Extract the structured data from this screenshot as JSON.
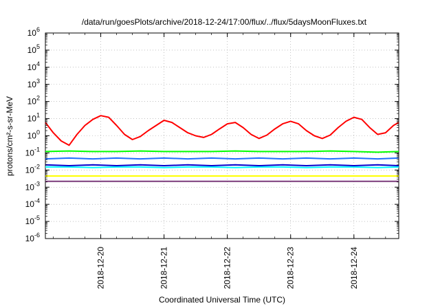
{
  "chart_data": {
    "type": "line",
    "title": "/data/run/goesPlots/archive/2018-12-24/17:00/flux/../flux/5daysMoonFluxes.txt",
    "xlabel": "Coordinated Universal Time (UTC)",
    "ylabel": "protons/cm²-s-sr-MeV",
    "yscale": "log",
    "ylim": [
      1e-06,
      1000000.0
    ],
    "xlim": [
      "2018-12-19 03:00",
      "2018-12-24 17:00"
    ],
    "grid": true,
    "legend": "none",
    "y_tick_labels": [
      {
        "base": "10",
        "exp": "-6"
      },
      {
        "base": "10",
        "exp": "-5"
      },
      {
        "base": "10",
        "exp": "-4"
      },
      {
        "base": "10",
        "exp": "-3"
      },
      {
        "base": "10",
        "exp": "-2"
      },
      {
        "base": "10",
        "exp": "-1"
      },
      {
        "base": "10",
        "exp": "0"
      },
      {
        "base": "10",
        "exp": "1"
      },
      {
        "base": "10",
        "exp": "2"
      },
      {
        "base": "10",
        "exp": "3"
      },
      {
        "base": "10",
        "exp": "4"
      },
      {
        "base": "10",
        "exp": "5"
      },
      {
        "base": "10",
        "exp": "6"
      }
    ],
    "x_tick_labels": [
      "2018-12-20",
      "2018-12-21",
      "2018-12-22",
      "2018-12-23",
      "2018-12-24"
    ],
    "series": [
      {
        "color": "#ff0000",
        "x": [
          "2018-12-19 03:00",
          "2018-12-19 06:00",
          "2018-12-19 09:00",
          "2018-12-19 12:00",
          "2018-12-19 15:00",
          "2018-12-19 18:00",
          "2018-12-19 21:00",
          "2018-12-20 00:00",
          "2018-12-20 03:00",
          "2018-12-20 06:00",
          "2018-12-20 09:00",
          "2018-12-20 12:00",
          "2018-12-20 15:00",
          "2018-12-20 18:00",
          "2018-12-20 21:00",
          "2018-12-21 00:00",
          "2018-12-21 03:00",
          "2018-12-21 06:00",
          "2018-12-21 09:00",
          "2018-12-21 12:00",
          "2018-12-21 15:00",
          "2018-12-21 18:00",
          "2018-12-21 21:00",
          "2018-12-22 00:00",
          "2018-12-22 03:00",
          "2018-12-22 06:00",
          "2018-12-22 09:00",
          "2018-12-22 12:00",
          "2018-12-22 15:00",
          "2018-12-22 18:00",
          "2018-12-22 21:00",
          "2018-12-23 00:00",
          "2018-12-23 03:00",
          "2018-12-23 06:00",
          "2018-12-23 09:00",
          "2018-12-23 12:00",
          "2018-12-23 15:00",
          "2018-12-23 18:00",
          "2018-12-23 21:00",
          "2018-12-24 00:00",
          "2018-12-24 03:00",
          "2018-12-24 06:00",
          "2018-12-24 09:00",
          "2018-12-24 12:00",
          "2018-12-24 15:00",
          "2018-12-24 17:00"
        ],
        "y": [
          6,
          1.5,
          0.5,
          0.28,
          1.2,
          4,
          9,
          15,
          12,
          4,
          1.2,
          0.6,
          0.9,
          2,
          4,
          8,
          6,
          3,
          1.5,
          1,
          0.8,
          1.2,
          2.5,
          5,
          6,
          3,
          1.2,
          0.7,
          1.1,
          2.5,
          5,
          7,
          5,
          2,
          1,
          0.7,
          1.1,
          3,
          7,
          12,
          9,
          3,
          1.2,
          1.5,
          4,
          6
        ]
      },
      {
        "color": "#00ff00",
        "x": [
          "2018-12-19 03:00",
          "2018-12-19 12:00",
          "2018-12-19 21:00",
          "2018-12-20 06:00",
          "2018-12-20 15:00",
          "2018-12-21 00:00",
          "2018-12-21 09:00",
          "2018-12-21 18:00",
          "2018-12-22 03:00",
          "2018-12-22 12:00",
          "2018-12-22 21:00",
          "2018-12-23 06:00",
          "2018-12-23 15:00",
          "2018-12-24 00:00",
          "2018-12-24 09:00",
          "2018-12-24 17:00"
        ],
        "y": [
          0.12,
          0.13,
          0.12,
          0.12,
          0.13,
          0.12,
          0.12,
          0.12,
          0.13,
          0.12,
          0.12,
          0.12,
          0.13,
          0.12,
          0.11,
          0.12
        ]
      },
      {
        "color": "#00ffff",
        "x": [
          "2018-12-19 03:00",
          "2018-12-19 12:00",
          "2018-12-19 21:00",
          "2018-12-20 06:00",
          "2018-12-20 15:00",
          "2018-12-21 00:00",
          "2018-12-21 09:00",
          "2018-12-21 18:00",
          "2018-12-22 03:00",
          "2018-12-22 12:00",
          "2018-12-22 21:00",
          "2018-12-23 06:00",
          "2018-12-23 15:00",
          "2018-12-24 00:00",
          "2018-12-24 09:00",
          "2018-12-24 17:00"
        ],
        "y": [
          0.015,
          0.015,
          0.014,
          0.015,
          0.015,
          0.014,
          0.015,
          0.015,
          0.014,
          0.015,
          0.015,
          0.014,
          0.015,
          0.015,
          0.014,
          0.015
        ]
      },
      {
        "color": "#1e6eff",
        "x": [
          "2018-12-19 03:00",
          "2018-12-19 12:00",
          "2018-12-19 21:00",
          "2018-12-20 06:00",
          "2018-12-20 15:00",
          "2018-12-21 00:00",
          "2018-12-21 09:00",
          "2018-12-21 18:00",
          "2018-12-22 03:00",
          "2018-12-22 12:00",
          "2018-12-22 21:00",
          "2018-12-23 06:00",
          "2018-12-23 15:00",
          "2018-12-24 00:00",
          "2018-12-24 09:00",
          "2018-12-24 17:00"
        ],
        "y": [
          0.045,
          0.05,
          0.045,
          0.05,
          0.045,
          0.05,
          0.045,
          0.05,
          0.045,
          0.05,
          0.045,
          0.05,
          0.045,
          0.05,
          0.045,
          0.05
        ]
      },
      {
        "color": "#0000cc",
        "x": [
          "2018-12-19 03:00",
          "2018-12-19 12:00",
          "2018-12-19 21:00",
          "2018-12-20 06:00",
          "2018-12-20 15:00",
          "2018-12-21 00:00",
          "2018-12-21 09:00",
          "2018-12-21 18:00",
          "2018-12-22 03:00",
          "2018-12-22 12:00",
          "2018-12-22 21:00",
          "2018-12-23 06:00",
          "2018-12-23 15:00",
          "2018-12-24 00:00",
          "2018-12-24 09:00",
          "2018-12-24 17:00"
        ],
        "y": [
          0.02,
          0.018,
          0.02,
          0.018,
          0.02,
          0.018,
          0.02,
          0.018,
          0.02,
          0.018,
          0.02,
          0.018,
          0.02,
          0.018,
          0.02,
          0.018
        ]
      },
      {
        "color": "#ffff00",
        "x": [
          "2018-12-19 03:00",
          "2018-12-19 12:00",
          "2018-12-19 21:00",
          "2018-12-20 06:00",
          "2018-12-20 15:00",
          "2018-12-21 00:00",
          "2018-12-21 09:00",
          "2018-12-21 18:00",
          "2018-12-22 03:00",
          "2018-12-22 12:00",
          "2018-12-22 21:00",
          "2018-12-23 06:00",
          "2018-12-23 15:00",
          "2018-12-24 00:00",
          "2018-12-24 09:00",
          "2018-12-24 17:00"
        ],
        "y": [
          0.0045,
          0.0045,
          0.0045,
          0.0045,
          0.0045,
          0.0045,
          0.0045,
          0.0045,
          0.0045,
          0.0045,
          0.0045,
          0.0045,
          0.0045,
          0.0045,
          0.0045,
          0.0045
        ]
      },
      {
        "color": "#7a3a7a",
        "x": [
          "2018-12-19 03:00",
          "2018-12-19 12:00",
          "2018-12-19 21:00",
          "2018-12-20 06:00",
          "2018-12-20 15:00",
          "2018-12-21 00:00",
          "2018-12-21 09:00",
          "2018-12-21 18:00",
          "2018-12-22 03:00",
          "2018-12-22 12:00",
          "2018-12-22 21:00",
          "2018-12-23 06:00",
          "2018-12-23 15:00",
          "2018-12-24 00:00",
          "2018-12-24 09:00",
          "2018-12-24 17:00"
        ],
        "y": [
          0.0022,
          0.0022,
          0.0022,
          0.0022,
          0.0022,
          0.0022,
          0.0022,
          0.0022,
          0.0022,
          0.0022,
          0.0022,
          0.0022,
          0.0022,
          0.0022,
          0.0022,
          0.0022
        ]
      }
    ]
  }
}
